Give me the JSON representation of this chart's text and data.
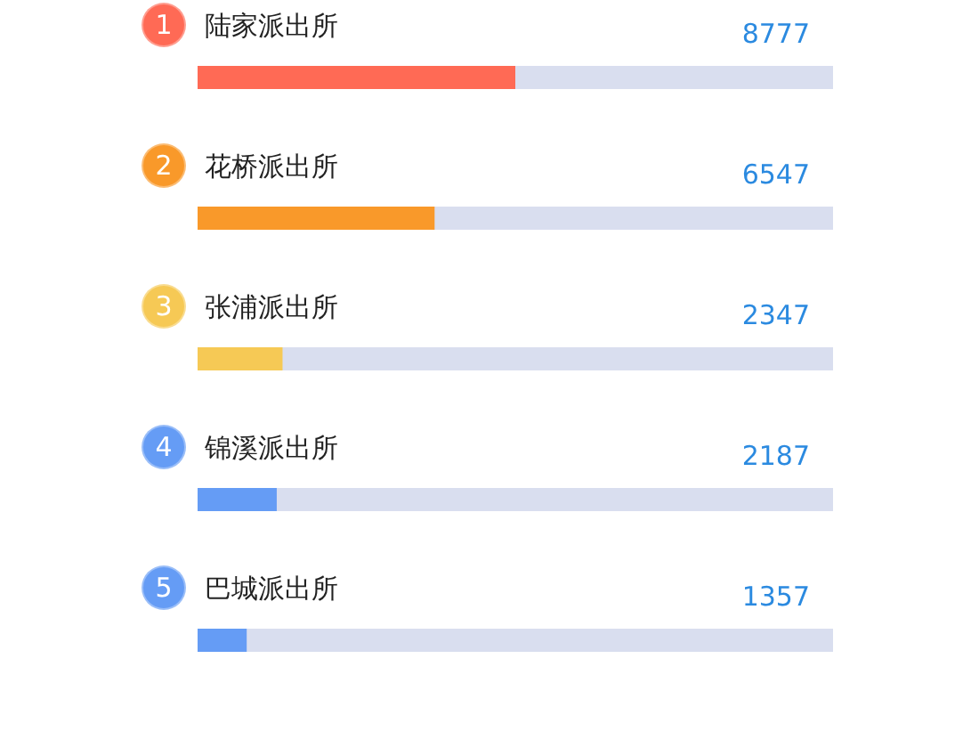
{
  "chart_data": {
    "type": "bar",
    "orientation": "horizontal",
    "categories": [
      "陆家派出所",
      "花桥派出所",
      "张浦派出所",
      "锦溪派出所",
      "巴城派出所"
    ],
    "values": [
      8777,
      6547,
      2347,
      2187,
      1357
    ],
    "colors": [
      "#ff6a55",
      "#f9992a",
      "#f6c955",
      "#659cf5",
      "#659cf5"
    ],
    "xlim": [
      0,
      17554
    ],
    "tick_labels": "y",
    "data_labels": true,
    "annotations": [
      "1",
      "2",
      "3",
      "4",
      "5"
    ]
  }
}
